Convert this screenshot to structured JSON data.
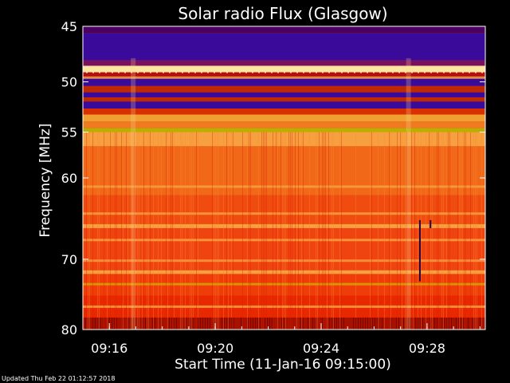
{
  "chart_data": {
    "type": "heatmap",
    "title": "Solar radio Flux (Glasgow)",
    "xlabel": "Start Time (11-Jan-16 09:15:00)",
    "ylabel": "Frequency [MHz]",
    "x_ticks": [
      "09:16",
      "09:20",
      "09:24",
      "09:28"
    ],
    "y_ticks": [
      45,
      50,
      55,
      60,
      70,
      80
    ],
    "y_scale": "log",
    "ylim": [
      45,
      80
    ],
    "x_tick_minutes": [
      16,
      20,
      24,
      28
    ],
    "xlim_minutes": [
      15,
      30.2
    ],
    "colors": {
      "purple": "#3a0a9a",
      "dark_red": "#8a0000",
      "red": "#e83000",
      "orange": "#f06010",
      "light_orange": "#f79a40",
      "yellow": "#b8b000",
      "cream": "#ffe6a0"
    },
    "bands": [
      {
        "from": 45.0,
        "to": 45.6,
        "color": "#4a0060"
      },
      {
        "from": 45.6,
        "to": 48.0,
        "color": "#3a0a9a"
      },
      {
        "from": 48.0,
        "to": 48.5,
        "color": "#7a1060"
      },
      {
        "from": 48.5,
        "to": 49.1,
        "color": "#ffe6a0"
      },
      {
        "from": 49.1,
        "to": 49.6,
        "color": "#b01010"
      },
      {
        "from": 49.6,
        "to": 50.4,
        "color": "#3a0a9a"
      },
      {
        "from": 50.4,
        "to": 51.0,
        "color": "#c02800"
      },
      {
        "from": 51.0,
        "to": 51.5,
        "color": "#3a0a9a"
      },
      {
        "from": 51.5,
        "to": 51.9,
        "color": "#c02800"
      },
      {
        "from": 51.9,
        "to": 52.6,
        "color": "#3a0a9a"
      },
      {
        "from": 52.6,
        "to": 53.2,
        "color": "#d83000"
      },
      {
        "from": 53.2,
        "to": 53.9,
        "color": "#f0a030"
      },
      {
        "from": 53.9,
        "to": 54.6,
        "color": "#f07a20"
      },
      {
        "from": 54.6,
        "to": 55.0,
        "color": "#b8b000"
      },
      {
        "from": 55.0,
        "to": 56.5,
        "color": "#f7a040"
      },
      {
        "from": 56.5,
        "to": 62.0,
        "color": "#f06818"
      },
      {
        "from": 62.0,
        "to": 65.5,
        "color": "#f04c10"
      },
      {
        "from": 65.5,
        "to": 66.0,
        "color": "#f7a040"
      },
      {
        "from": 66.0,
        "to": 71.5,
        "color": "#f04410"
      },
      {
        "from": 71.5,
        "to": 72.0,
        "color": "#f7a040"
      },
      {
        "from": 72.0,
        "to": 75.0,
        "color": "#f03c08"
      },
      {
        "from": 75.0,
        "to": 78.2,
        "color": "#e82800"
      },
      {
        "from": 78.2,
        "to": 80.0,
        "color": "#a81000"
      }
    ],
    "lines": [
      {
        "f": 49.6,
        "color": "#f7a040"
      },
      {
        "f": 61.0,
        "color": "#f7a040"
      },
      {
        "f": 64.2,
        "color": "#f7a040"
      },
      {
        "f": 67.5,
        "color": "#f7a040"
      },
      {
        "f": 70.2,
        "color": "#f79a40"
      },
      {
        "f": 73.4,
        "color": "#d8a000"
      },
      {
        "f": 76.6,
        "color": "#f7a040"
      }
    ],
    "vertical_stripes_minutes": [
      16.9,
      27.3
    ],
    "dark_spikes": [
      {
        "t": 27.7,
        "f_from": 65.0,
        "f_to": 73.0
      },
      {
        "t": 28.1,
        "f_from": 65.0,
        "f_to": 66.0
      }
    ]
  },
  "footer": {
    "updated": "Updated Thu Feb 22 01:12:57 2018"
  }
}
